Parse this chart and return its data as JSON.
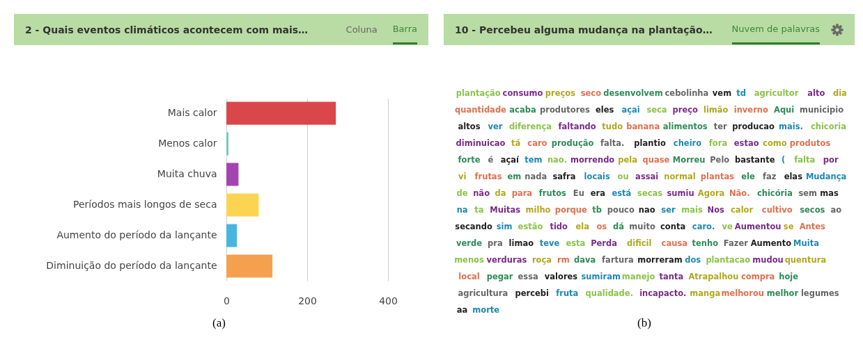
{
  "chart_data": [
    {
      "type": "bar",
      "orientation": "horizontal",
      "title": "2 - Quais eventos climáticos acontecem com mais…",
      "annotations": [
        "Coluna",
        "Barra",
        "(a)"
      ],
      "categories": [
        "Mais calor",
        "Menos calor",
        "Muita chuva",
        "Períodos mais longos de seca",
        "Aumento do período da lançante",
        "Diminuição do período da lançante"
      ],
      "values": [
        271,
        5,
        30,
        80,
        26,
        114
      ],
      "colors": [
        "#d9474b",
        "#6cc7c4",
        "#a444b0",
        "#fdd451",
        "#47b6e0",
        "#f5a04f"
      ],
      "xlim": [
        0,
        400
      ],
      "xticks": [
        0,
        200,
        400
      ],
      "grid": "x"
    },
    {
      "type": "other",
      "title": "10 - Percebeu alguma mudança na plantação…",
      "annotations": [
        "Nuvem de palavras",
        "(b)",
        "plantação",
        "consumo",
        "preços",
        "seco",
        "desenvolvem",
        "cebolinha",
        "vem",
        "td",
        "agricultor",
        "alto",
        "dia",
        "quantidade",
        "acaba",
        "produtores",
        "eles",
        "açai",
        "seca",
        "preço",
        "limão",
        "inverno",
        "Aqui",
        "municipio",
        "altos",
        "ver",
        "diferença",
        "faltando",
        "tudo",
        "banana",
        "alimentos",
        "ter",
        "producao",
        "mais.",
        "chicoria",
        "diminuicao",
        "tá",
        "caro",
        "produção",
        "falta.",
        "plantio",
        "cheiro",
        "fora",
        "estao",
        "como",
        "produtos",
        "forte",
        "é",
        "açaí",
        "tem",
        "nao.",
        "morrendo",
        "pela",
        "quase",
        "Morreu",
        "Pelo",
        "bastante",
        "(",
        "falta",
        "por",
        "vi",
        "frutas",
        "em",
        "nada",
        "safra",
        "locais",
        "ou",
        "assai",
        "normal",
        "plantas",
        "ele",
        "faz",
        "elas",
        "Mudança",
        "de",
        "não",
        "da",
        "para",
        "frutos",
        "Eu",
        "era",
        "está",
        "secas",
        "sumiu",
        "Agora",
        "Não.",
        "chicória",
        "sem",
        "mas",
        "na",
        "ta",
        "Muitas",
        "milho",
        "porque",
        "tb",
        "pouco",
        "nao",
        "ser",
        "mais",
        "Nos",
        "calor",
        "cultivo",
        "secos",
        "ao",
        "secando",
        "sim",
        "estão",
        "tido",
        "ela",
        "os",
        "dá",
        "muito",
        "conta",
        "caro.",
        "ve",
        "Aumentou",
        "se",
        "Antes",
        "verde",
        "pra",
        "limao",
        "teve",
        "esta",
        "Perda",
        "dificil",
        "causa",
        "tenho",
        "Fazer",
        "Aumento",
        "Muita",
        "menos",
        "verduras",
        "roça",
        "rm",
        "dava",
        "fartura",
        "morreram",
        "dos",
        "plantacao",
        "mudou",
        "quentura",
        "local",
        "pegar",
        "essa",
        "valores",
        "sumiram",
        "manejo",
        "tanta",
        "Atrapalhou",
        "compra",
        "hoje",
        "agricultura",
        "percebi",
        "fruta",
        "qualidade.",
        "incapacto.",
        "manga",
        "melhorou",
        "melhor",
        "legumes",
        "aa",
        "morte"
      ]
    }
  ]
}
